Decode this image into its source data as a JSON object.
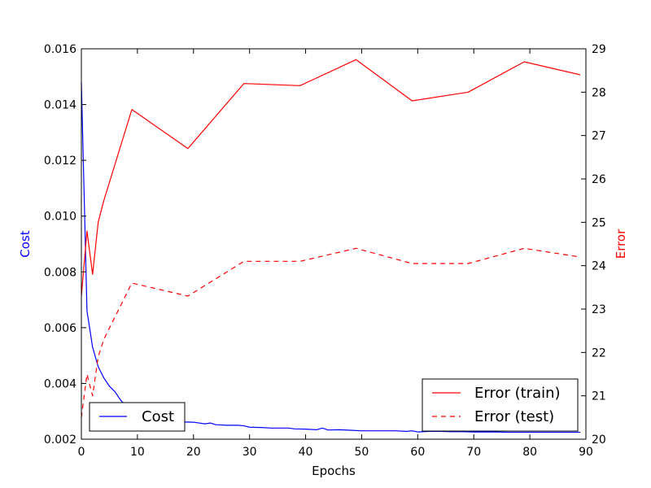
{
  "chart_data": {
    "type": "line",
    "xlabel": "Epochs",
    "y_left_label": "Cost",
    "y_right_label": "Error",
    "xlim": [
      0,
      90
    ],
    "ylim_left": [
      0.002,
      0.016
    ],
    "ylim_right": [
      20,
      29
    ],
    "x_ticks": [
      "0",
      "10",
      "20",
      "30",
      "40",
      "50",
      "60",
      "70",
      "80",
      "90"
    ],
    "y_left_ticks": [
      "0.002",
      "0.004",
      "0.006",
      "0.008",
      "0.010",
      "0.012",
      "0.014",
      "0.016"
    ],
    "y_right_ticks": [
      "20",
      "21",
      "22",
      "23",
      "24",
      "25",
      "26",
      "27",
      "28",
      "29"
    ],
    "grid": false,
    "colors": {
      "cost": "#0000ff",
      "error": "#ff0000"
    },
    "series": [
      {
        "name": "Cost",
        "axis": "left",
        "style": "solid",
        "x": [
          0,
          1,
          2,
          3,
          4,
          5,
          6,
          7,
          8,
          9,
          10,
          12,
          14,
          16,
          18,
          20,
          22,
          23,
          24,
          26,
          28,
          29,
          30,
          32,
          34,
          36,
          37,
          38,
          40,
          42,
          43,
          44,
          46,
          48,
          50,
          52,
          54,
          56,
          58,
          59,
          60,
          62,
          64,
          66,
          68,
          70,
          72,
          74,
          76,
          78,
          80,
          82,
          84,
          86,
          88,
          89
        ],
        "values": [
          0.0148,
          0.0066,
          0.0053,
          0.0046,
          0.0042,
          0.0039,
          0.0037,
          0.0034,
          0.0032,
          0.0031,
          0.0029,
          0.0028,
          0.0027,
          0.00266,
          0.00262,
          0.00261,
          0.00255,
          0.00258,
          0.00252,
          0.0025,
          0.0025,
          0.00248,
          0.00243,
          0.00242,
          0.0024,
          0.0024,
          0.0024,
          0.00237,
          0.00236,
          0.00234,
          0.0024,
          0.00233,
          0.00234,
          0.00232,
          0.0023,
          0.0023,
          0.0023,
          0.0023,
          0.00228,
          0.0023,
          0.00226,
          0.00228,
          0.00228,
          0.00227,
          0.00227,
          0.00226,
          0.00226,
          0.00226,
          0.00225,
          0.00225,
          0.00225,
          0.00225,
          0.00225,
          0.00225,
          0.00225,
          0.00225
        ]
      },
      {
        "name": "Error (train)",
        "axis": "right",
        "style": "solid",
        "x": [
          0,
          1,
          2,
          3,
          4,
          9,
          19,
          29,
          39,
          49,
          59,
          69,
          79,
          89
        ],
        "values": [
          23.3,
          24.8,
          23.8,
          25.0,
          25.5,
          27.6,
          26.7,
          28.2,
          28.15,
          28.75,
          27.8,
          28.0,
          28.7,
          28.4
        ]
      },
      {
        "name": "Error (test)",
        "axis": "right",
        "style": "dashed",
        "x": [
          0,
          1,
          2,
          3,
          4,
          9,
          19,
          29,
          39,
          49,
          59,
          69,
          79,
          89
        ],
        "values": [
          20.5,
          21.5,
          21.0,
          21.9,
          22.3,
          23.6,
          23.3,
          24.1,
          24.1,
          24.4,
          24.05,
          24.05,
          24.4,
          24.2
        ]
      }
    ],
    "legends": [
      {
        "placement": "lower-left",
        "entries": [
          "Cost"
        ]
      },
      {
        "placement": "lower-right",
        "entries": [
          "Error (train)",
          "Error (test)"
        ]
      }
    ]
  }
}
